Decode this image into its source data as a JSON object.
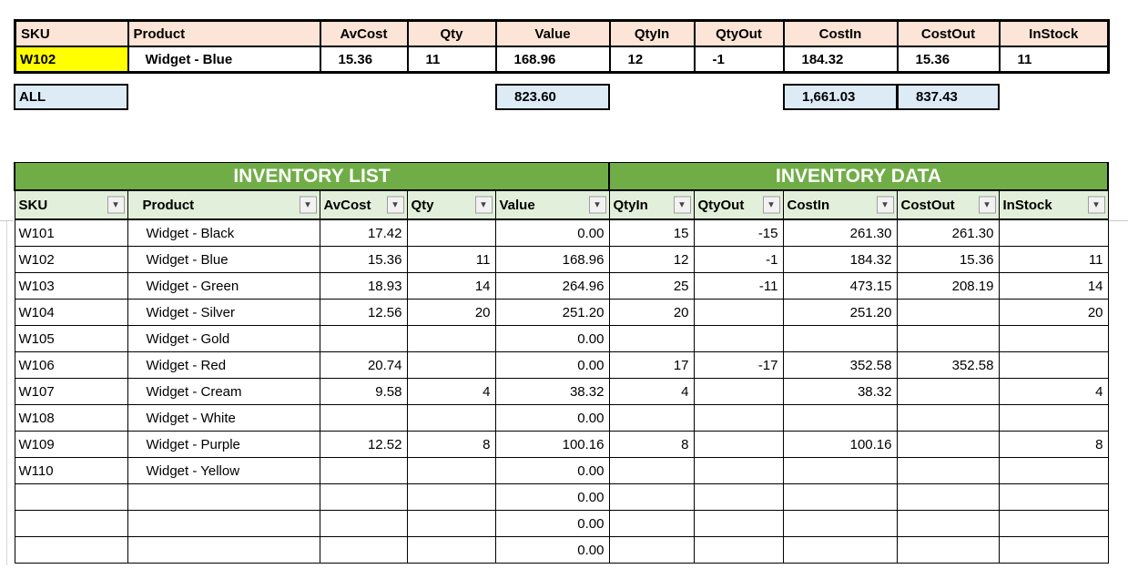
{
  "lookup_table": {
    "headers": [
      "SKU",
      "Product",
      "AvCost",
      "Qty",
      "Value",
      "QtyIn",
      "QtyOut",
      "CostIn",
      "CostOut",
      "InStock"
    ],
    "row": [
      "W102",
      "Widget - Blue",
      "15.36",
      "11",
      "168.96",
      "12",
      "-1",
      "184.32",
      "15.36",
      "11"
    ]
  },
  "summary_row": {
    "label": "ALL",
    "value_total": "823.60",
    "costin_total": "1,661.03",
    "costout_total": "837.43"
  },
  "inventory_table": {
    "section_titles": {
      "list": "INVENTORY LIST",
      "data": "INVENTORY DATA"
    },
    "columns": [
      "SKU",
      "Product",
      "AvCost",
      "Qty",
      "Value",
      "QtyIn",
      "QtyOut",
      "CostIn",
      "CostOut",
      "InStock"
    ],
    "filter_icon": "▾",
    "rows": [
      [
        "W101",
        "Widget - Black",
        "17.42",
        "",
        "0.00",
        "15",
        "-15",
        "261.30",
        "261.30",
        ""
      ],
      [
        "W102",
        "Widget - Blue",
        "15.36",
        "11",
        "168.96",
        "12",
        "-1",
        "184.32",
        "15.36",
        "11"
      ],
      [
        "W103",
        "Widget - Green",
        "18.93",
        "14",
        "264.96",
        "25",
        "-11",
        "473.15",
        "208.19",
        "14"
      ],
      [
        "W104",
        "Widget - Silver",
        "12.56",
        "20",
        "251.20",
        "20",
        "",
        "251.20",
        "",
        "20"
      ],
      [
        "W105",
        "Widget - Gold",
        "",
        "",
        "0.00",
        "",
        "",
        "",
        "",
        ""
      ],
      [
        "W106",
        "Widget - Red",
        "20.74",
        "",
        "0.00",
        "17",
        "-17",
        "352.58",
        "352.58",
        ""
      ],
      [
        "W107",
        "Widget - Cream",
        "9.58",
        "4",
        "38.32",
        "4",
        "",
        "38.32",
        "",
        "4"
      ],
      [
        "W108",
        "Widget - White",
        "",
        "",
        "0.00",
        "",
        "",
        "",
        "",
        ""
      ],
      [
        "W109",
        "Widget - Purple",
        "12.52",
        "8",
        "100.16",
        "8",
        "",
        "100.16",
        "",
        "8"
      ],
      [
        "W110",
        "Widget - Yellow",
        "",
        "",
        "0.00",
        "",
        "",
        "",
        "",
        ""
      ],
      [
        "",
        "",
        "",
        "",
        "0.00",
        "",
        "",
        "",
        "",
        ""
      ],
      [
        "",
        "",
        "",
        "",
        "0.00",
        "",
        "",
        "",
        "",
        ""
      ],
      [
        "",
        "",
        "",
        "",
        "0.00",
        "",
        "",
        "",
        "",
        ""
      ]
    ]
  },
  "colors": {
    "lookup_header_fill": "#FCE4D6",
    "sku_highlight_fill": "#FFFF00",
    "summary_fill": "#DDEBF7",
    "section_header_fill": "#70AD47",
    "filter_row_fill": "#E2EFDA"
  }
}
